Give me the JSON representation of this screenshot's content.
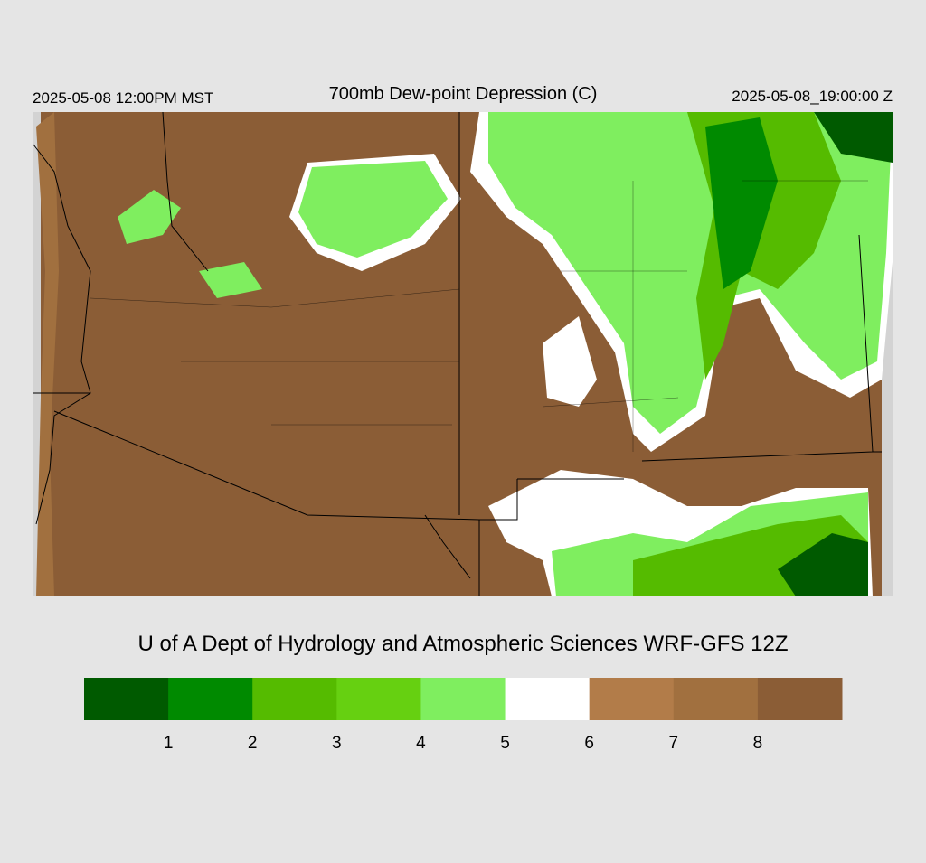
{
  "header": {
    "left": "2025-05-08 12:00PM MST",
    "title": "700mb Dew-point Depression (C)",
    "right": "2025-05-08_19:00:00 Z"
  },
  "footer": "U of A Dept of Hydrology and Atmospheric Sciences WRF-GFS 12Z",
  "colorbar": {
    "colors": [
      "#005a00",
      "#008a00",
      "#55bb00",
      "#66d011",
      "#7fee5f",
      "#ffffff",
      "#b27c49",
      "#a1703f",
      "#8b5d36"
    ],
    "ticks": [
      1,
      2,
      3,
      4,
      5,
      6,
      7,
      8
    ]
  }
}
